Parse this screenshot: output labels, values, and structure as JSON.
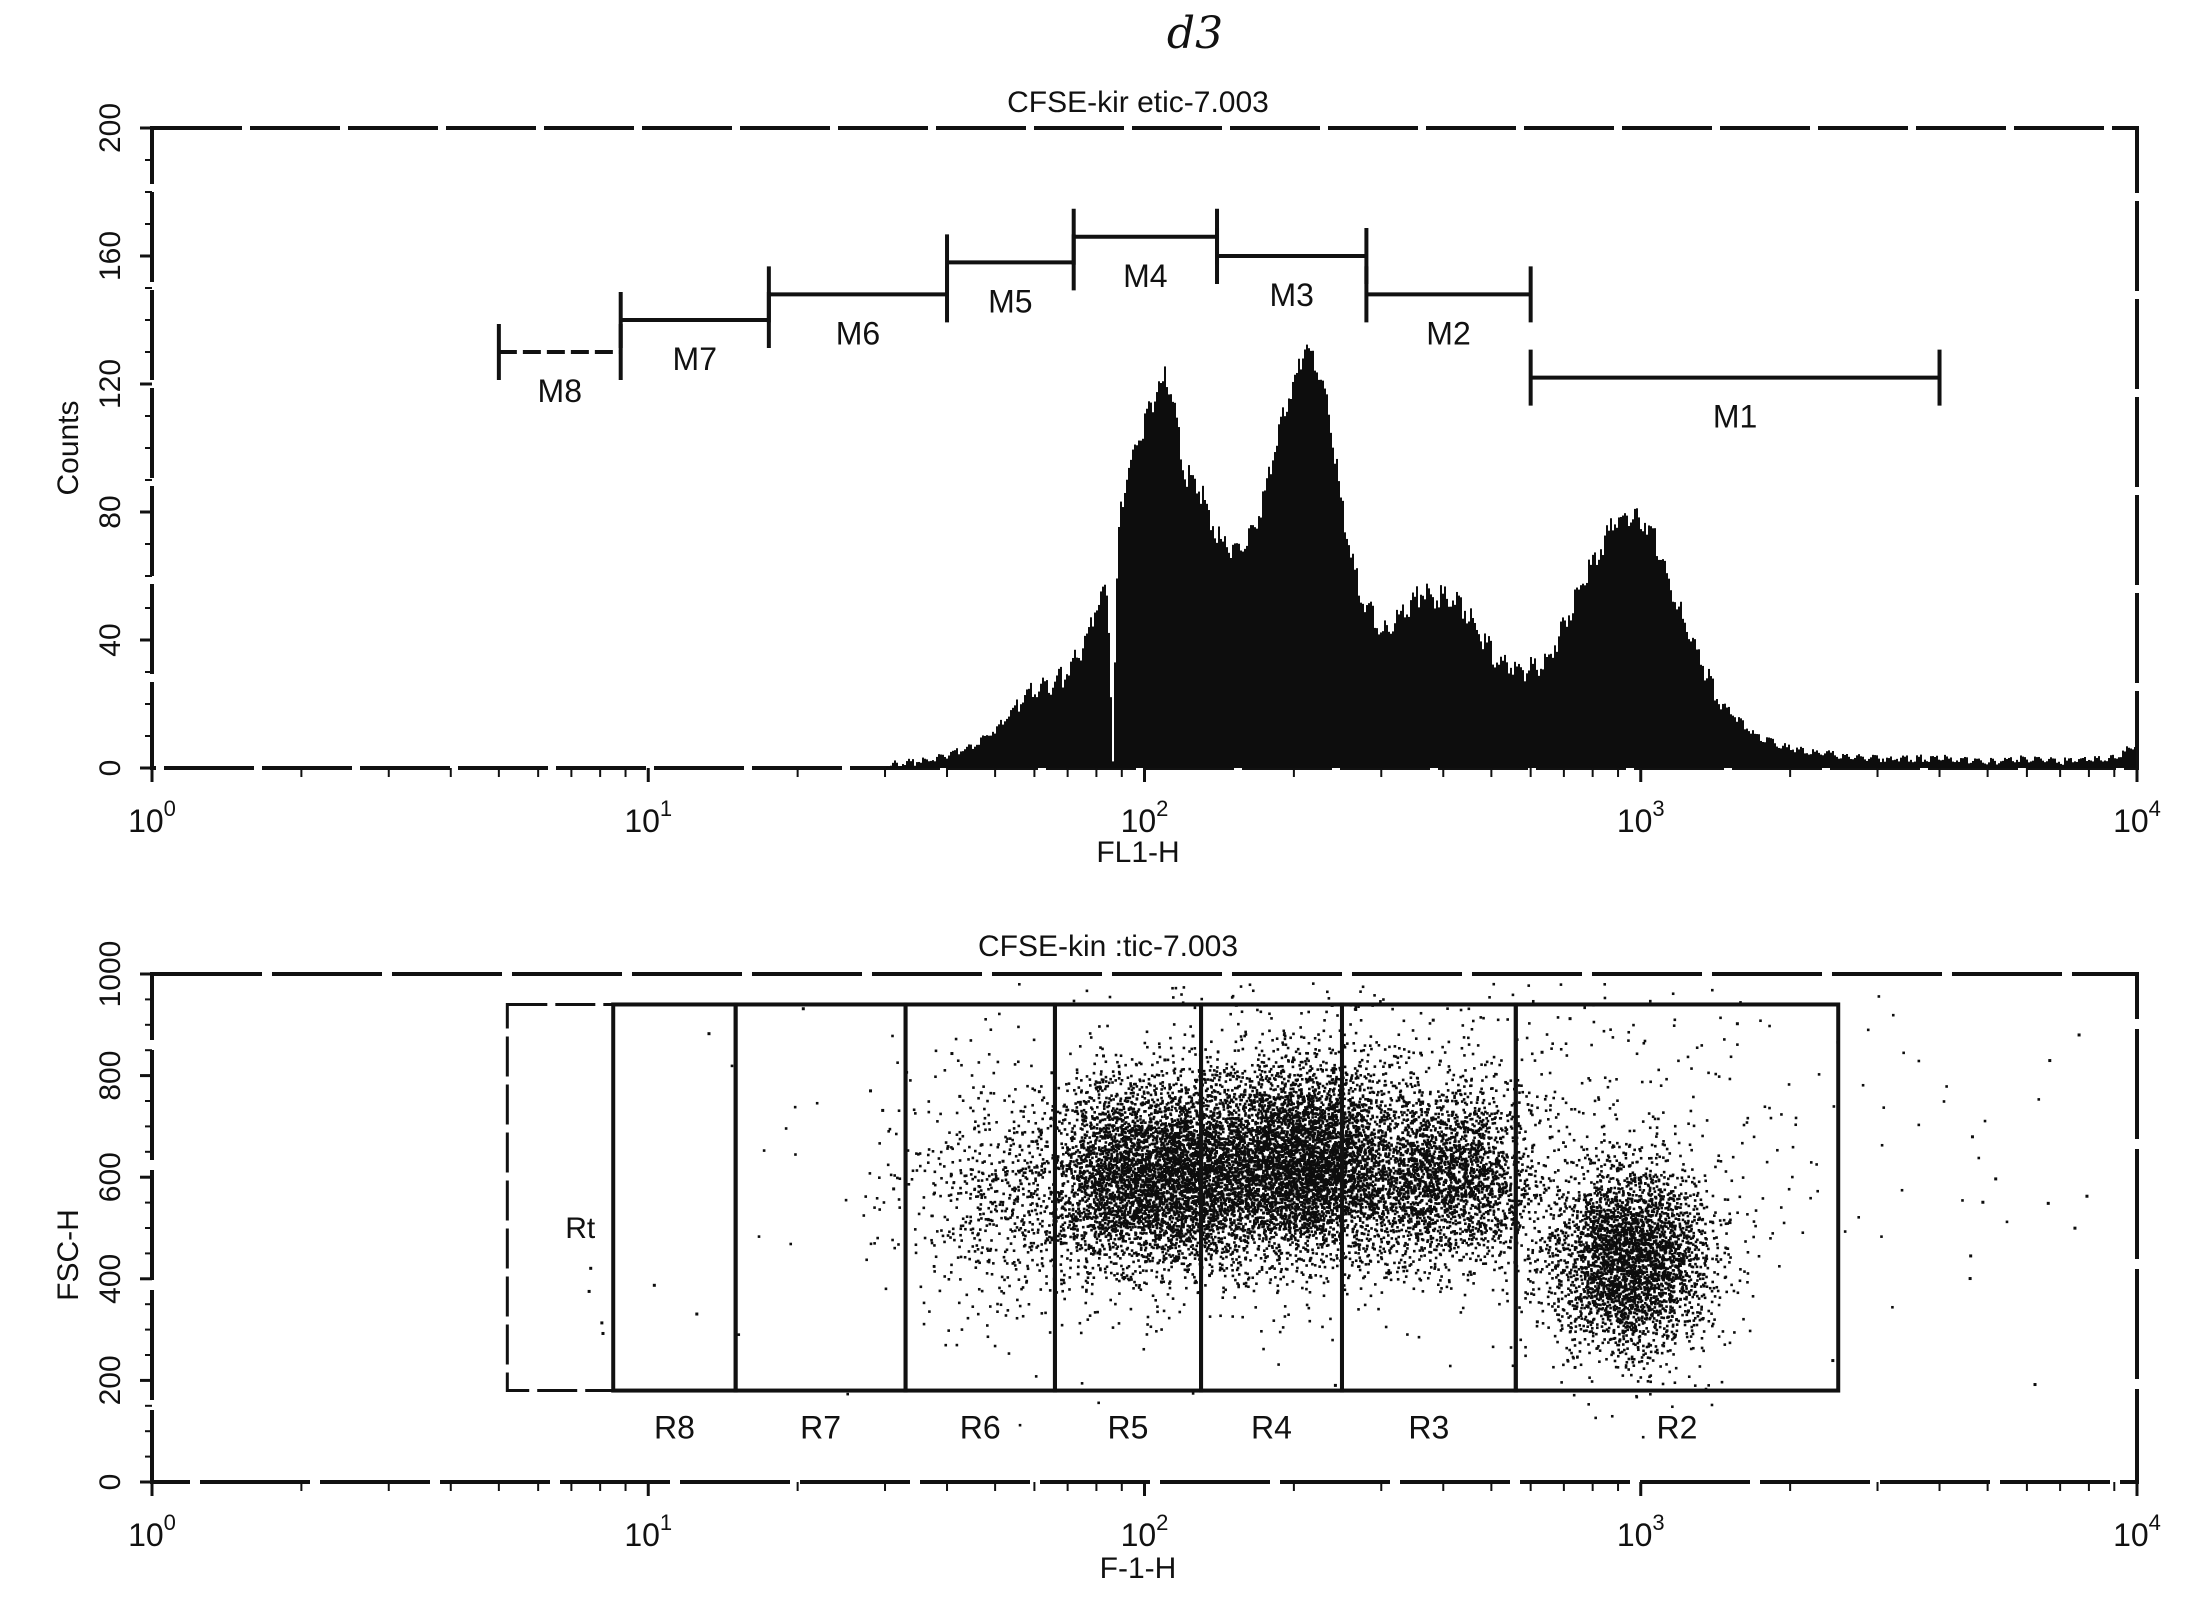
{
  "page": {
    "handwritten_label": "d3"
  },
  "chart_data": [
    {
      "type": "histogram",
      "title": "CFSE-kir etic-7.003",
      "xlabel": "FL1-H",
      "ylabel": "Counts",
      "x_scale": "log",
      "xlim": [
        1,
        10000
      ],
      "ylim": [
        0,
        200
      ],
      "x_ticks": [
        {
          "value": 1,
          "base": "10",
          "exp": "0"
        },
        {
          "value": 10,
          "base": "10",
          "exp": "1"
        },
        {
          "value": 100,
          "base": "10",
          "exp": "2"
        },
        {
          "value": 1000,
          "base": "10",
          "exp": "3"
        },
        {
          "value": 10000,
          "base": "10",
          "exp": "4"
        }
      ],
      "y_ticks": [
        "0",
        "40",
        "80",
        "120",
        "160",
        "200"
      ],
      "series": [
        {
          "x": [
            30,
            35,
            40,
            45,
            50,
            55,
            60,
            65,
            70,
            75,
            80,
            84,
            86,
            88,
            90,
            95,
            100,
            105,
            110,
            115,
            120,
            125,
            130,
            140,
            150,
            160,
            170,
            180,
            190,
            200,
            210,
            220,
            230,
            250,
            270,
            300,
            330,
            360,
            400,
            430,
            470,
            520,
            580,
            650,
            720,
            800,
            880,
            950,
            1050,
            1150,
            1300,
            1450,
            1700,
            2000,
            2500,
            3000,
            4000,
            5000,
            6000,
            7000,
            8000,
            9000,
            10000
          ],
          "values": [
            1,
            2,
            4,
            7,
            12,
            20,
            24,
            26,
            30,
            38,
            52,
            55,
            2,
            70,
            85,
            100,
            108,
            118,
            122,
            112,
            92,
            90,
            85,
            72,
            68,
            72,
            80,
            95,
            112,
            120,
            132,
            128,
            118,
            80,
            55,
            42,
            48,
            55,
            53,
            52,
            42,
            33,
            31,
            34,
            50,
            65,
            76,
            80,
            75,
            55,
            35,
            20,
            10,
            6,
            4,
            3,
            3,
            2,
            3,
            2,
            3,
            3,
            8
          ]
        }
      ],
      "markers": [
        {
          "label": "M8",
          "from": 5,
          "to": 8.8,
          "level": 130
        },
        {
          "label": "M7",
          "from": 8.8,
          "to": 17.5,
          "level": 140
        },
        {
          "label": "M6",
          "from": 17.5,
          "to": 40,
          "level": 148
        },
        {
          "label": "M5",
          "from": 40,
          "to": 72,
          "level": 158
        },
        {
          "label": "M4",
          "from": 72,
          "to": 140,
          "level": 166
        },
        {
          "label": "M3",
          "from": 140,
          "to": 280,
          "level": 160
        },
        {
          "label": "M2",
          "from": 280,
          "to": 600,
          "level": 148
        },
        {
          "label": "M1",
          "from": 600,
          "to": 4000,
          "level": 122
        }
      ]
    },
    {
      "type": "scatter",
      "title": "CFSE-kin :tic-7.003",
      "xlabel": "F-1-H",
      "ylabel": "FSC-H",
      "x_scale": "log",
      "xlim": [
        1,
        10000
      ],
      "ylim": [
        0,
        1000
      ],
      "x_ticks": [
        {
          "value": 1,
          "base": "10",
          "exp": "0"
        },
        {
          "value": 10,
          "base": "10",
          "exp": "1"
        },
        {
          "value": 100,
          "base": "10",
          "exp": "2"
        },
        {
          "value": 1000,
          "base": "10",
          "exp": "3"
        },
        {
          "value": 10000,
          "base": "10",
          "exp": "4"
        }
      ],
      "y_ticks": [
        "0",
        "200",
        "400",
        "600",
        "800",
        "1000"
      ],
      "populations": [
        {
          "x_center": 60,
          "y_center": 560,
          "x_spread": 0.14,
          "y_spread": 110,
          "weight": 6
        },
        {
          "x_center": 85,
          "y_center": 600,
          "x_spread": 0.05,
          "y_spread": 90,
          "weight": 6
        },
        {
          "x_center": 120,
          "y_center": 610,
          "x_spread": 0.09,
          "y_spread": 90,
          "weight": 22
        },
        {
          "x_center": 210,
          "y_center": 630,
          "x_spread": 0.09,
          "y_spread": 95,
          "weight": 26
        },
        {
          "x_center": 400,
          "y_center": 600,
          "x_spread": 0.09,
          "y_spread": 85,
          "weight": 14
        },
        {
          "x_center": 950,
          "y_center": 440,
          "x_spread": 0.08,
          "y_spread": 90,
          "weight": 20
        },
        {
          "x_center": 300,
          "y_center": 700,
          "x_spread": 0.45,
          "y_spread": 180,
          "weight": 6
        }
      ],
      "regions": [
        {
          "label": "R8",
          "from": 8.5,
          "to": 15
        },
        {
          "label": "R7",
          "from": 15,
          "to": 33
        },
        {
          "label": "R6",
          "from": 33,
          "to": 66
        },
        {
          "label": "R5",
          "from": 66,
          "to": 130
        },
        {
          "label": "R4",
          "from": 130,
          "to": 250
        },
        {
          "label": "R3",
          "from": 250,
          "to": 560
        },
        {
          "label": "R2",
          "from": 560,
          "to": 2500
        }
      ],
      "region_fragment": {
        "label": "Rt",
        "from": 5.2,
        "to": 8.5
      },
      "region_y_range": [
        180,
        940
      ]
    }
  ]
}
